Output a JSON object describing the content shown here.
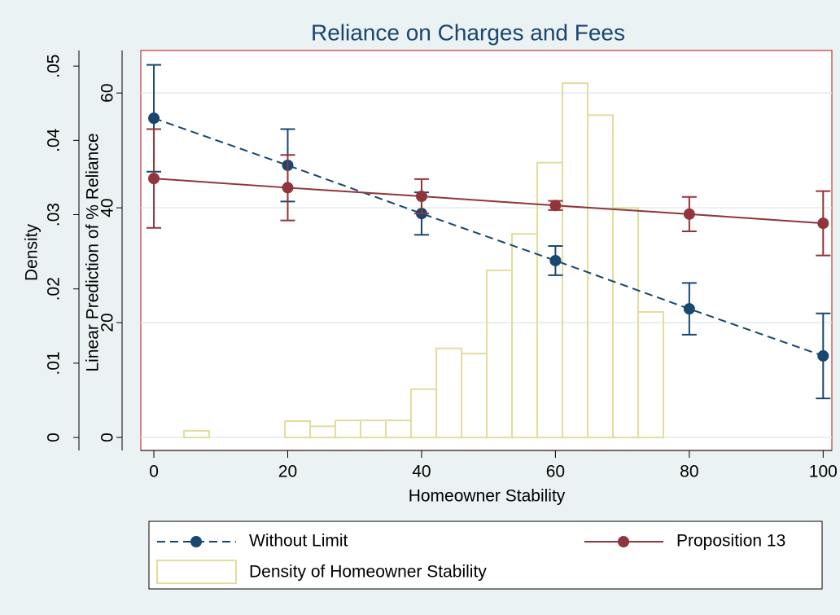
{
  "chart_data": {
    "type": "line",
    "title": "Reliance on Charges and Fees",
    "x_label": "Homeowner Stability",
    "y_label": "Linear Prediction of % Reliance",
    "y2_label": "Density",
    "x": [
      0,
      20,
      40,
      60,
      80,
      100
    ],
    "xlim": [
      -1.95,
      101.3
    ],
    "xticks": [
      0,
      20,
      40,
      60,
      80,
      100
    ],
    "ylim": [
      -2.27,
      67.4
    ],
    "yticks": [
      0,
      20,
      40,
      60
    ],
    "y2lim": [
      -0.00175,
      0.0521
    ],
    "y2ticks": [
      0,
      {
        "value": 0.01,
        "label": ".01"
      },
      {
        "value": 0.02,
        "label": ".02"
      },
      {
        "value": 0.03,
        "label": ".03"
      },
      {
        "value": 0.04,
        "label": ".04"
      },
      {
        "value": 0.05,
        "label": ".05"
      }
    ],
    "grid": true,
    "series": [
      {
        "name": "Without Limit",
        "color": "#1a476f",
        "line_style": "dashed",
        "values": [
          55.6,
          47.4,
          39.0,
          30.8,
          22.4,
          14.2
        ],
        "errors": [
          9.3,
          6.3,
          3.7,
          2.55,
          4.5,
          7.4
        ]
      },
      {
        "name": "Proposition 13",
        "color": "#90353b",
        "line_style": "solid",
        "values": [
          45.1,
          43.5,
          42.0,
          40.4,
          38.9,
          37.3
        ],
        "errors": [
          8.6,
          5.7,
          3.0,
          0.8,
          3.0,
          5.6
        ]
      }
    ],
    "histogram": {
      "name": "Density of Homeowner Stability",
      "color": "#e2dc9e",
      "axis": "y2",
      "bins": [
        4.5,
        8.27,
        12.04,
        15.81,
        19.58,
        23.35,
        27.12,
        30.89,
        34.66,
        38.43,
        42.2,
        45.97,
        49.74,
        53.51,
        57.28,
        61.05,
        64.82,
        68.59,
        72.36,
        76.13
      ],
      "counts": [
        0.0009,
        0,
        0,
        0,
        0.0022,
        0.0015,
        0.0023,
        0.0023,
        0.0023,
        0.0065,
        0.012,
        0.0113,
        0.0225,
        0.0274,
        0.037,
        0.0477,
        0.0434,
        0.0309,
        0.0169
      ]
    }
  }
}
